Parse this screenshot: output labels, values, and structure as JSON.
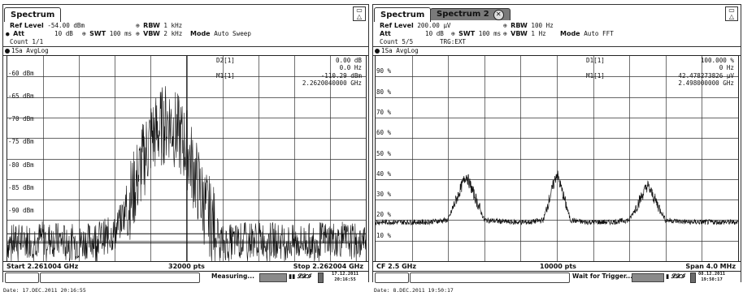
{
  "left": {
    "tab_label": "Spectrum",
    "settings": {
      "ref_label": "Ref Level",
      "ref_value": "-54.00 dBm",
      "rbw_label": "RBW",
      "rbw_value": "1 kHz",
      "att_label": "Att",
      "att_value": "10 dB",
      "swt_label": "SWT",
      "swt_value": "100 ms",
      "vbw_label": "VBW",
      "vbw_value": "2 kHz",
      "mode_label": "Mode",
      "mode_value": "Auto Sweep",
      "count": "Count 1/1"
    },
    "trace_label": "1Sa AvgLog",
    "y_labels": [
      "-60 dBm",
      "-65 dBm",
      "-70 dBm",
      "-75 dBm",
      "-80 dBm",
      "-85 dBm",
      "-90 dBm"
    ],
    "markers": {
      "d2_name": "D2[1]",
      "d2_level": "0.00 dB",
      "d2_freq": "0.0 Hz",
      "m1_name": "M1[1]",
      "m1_level": "-110.29 dBm",
      "m1_freq": "2.2620040000 GHz"
    },
    "footer": {
      "start": "Start 2.261004 GHz",
      "pts": "32000 pts",
      "stop": "Stop 2.262004 GHz"
    },
    "status": {
      "text": "Measuring...",
      "datetime_date": "17.12.2011",
      "datetime_time": "20:16:55"
    },
    "caption": "Date: 17.DEC.2011  20:16:55",
    "chart_data": {
      "type": "line",
      "x_start": "2.261004 GHz",
      "x_stop": "2.262004 GHz",
      "ylabel_unit": "dBm",
      "ylim": [
        -100,
        -55
      ],
      "y_ticks": [
        -60,
        -65,
        -70,
        -75,
        -80,
        -85,
        -90
      ],
      "series": [
        {
          "x": [
            0.0,
            0.1,
            0.2,
            0.3,
            0.35,
            0.4,
            0.45,
            0.5,
            0.55,
            0.6,
            0.7,
            0.8,
            0.9,
            1.0
          ],
          "values": [
            -96,
            -95,
            -96,
            -94,
            -85,
            -73,
            -69,
            -75,
            -88,
            -96,
            -95,
            -96,
            -95,
            -96
          ]
        }
      ]
    }
  },
  "right": {
    "tab_label": "Spectrum",
    "tab2_label": "Spectrum 2",
    "settings": {
      "ref_label": "Ref Level",
      "ref_value": "200.00 µV",
      "rbw_label": "RBW",
      "rbw_value": "100 Hz",
      "att_label": "Att",
      "att_value": "10 dB",
      "swt_label": "SWT",
      "swt_value": "100 ms",
      "vbw_label": "VBW",
      "vbw_value": "1 Hz",
      "mode_label": "Mode",
      "mode_value": "Auto FFT",
      "count": "Count 5/5",
      "trg": "TRG:EXT"
    },
    "trace_label": "1Sa AvgLog",
    "y_labels": [
      "90 %",
      "80 %",
      "70 %",
      "60 %",
      "50 %",
      "40 %",
      "30 %",
      "20 %",
      "10 %"
    ],
    "markers": {
      "d1_name": "D1[1]",
      "d1_level": "100.000 %",
      "d1_freq": "0 Hz",
      "m1_name": "M1[1]",
      "m1_level": "42.478273826 µV",
      "m1_freq": "2.498000000 GHz"
    },
    "footer": {
      "start": "CF 2.5 GHz",
      "pts": "10000 pts",
      "stop": "Span 4.0 MHz"
    },
    "status": {
      "text": "Wait for Trigger...",
      "datetime_date": "08.12.2011",
      "datetime_time": "19:50:17"
    },
    "caption": "Date: 8.DEC.2011  19:50:17",
    "chart_data": {
      "type": "line",
      "x_center": "2.5 GHz",
      "x_span": "4.0 MHz",
      "ylabel_unit": "%",
      "ylim": [
        0,
        100
      ],
      "y_ticks": [
        90,
        80,
        70,
        60,
        50,
        40,
        30,
        20,
        10
      ],
      "series": [
        {
          "x": [
            -2.0,
            -1.45,
            -1.2,
            -1.0,
            -0.8,
            -0.5,
            -0.3,
            -0.15,
            0.0,
            0.15,
            0.3,
            0.6,
            0.8,
            1.0,
            1.2,
            1.45,
            2.0
          ],
          "values": [
            19,
            19,
            20,
            42,
            20,
            19,
            19,
            20,
            43,
            20,
            19,
            19,
            20,
            37,
            20,
            19,
            19
          ]
        }
      ]
    }
  }
}
